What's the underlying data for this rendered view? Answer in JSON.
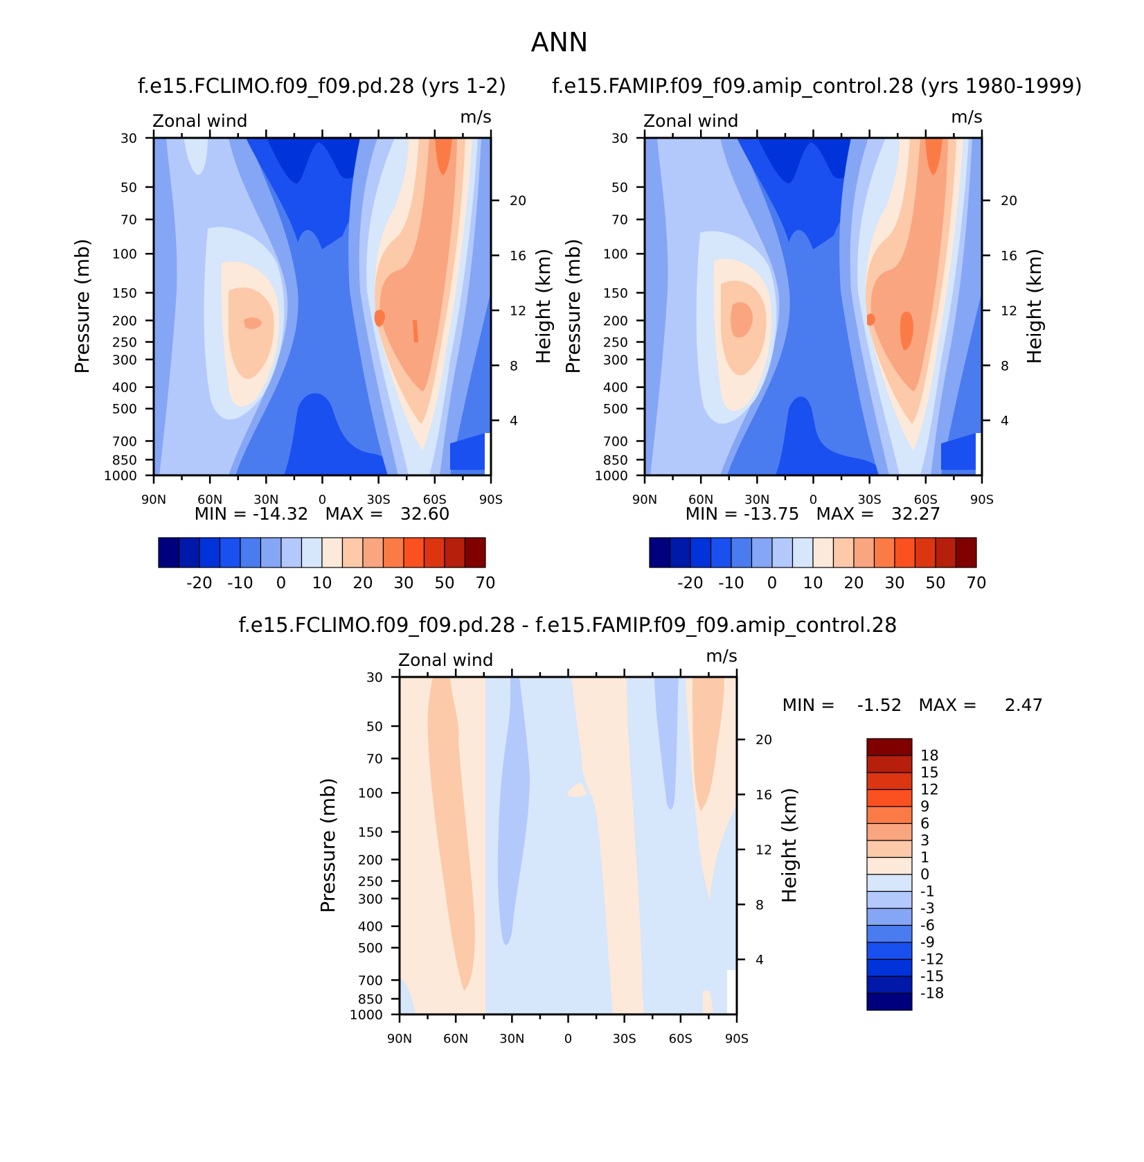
{
  "page_title": "ANN",
  "colors": {
    "blue_8": "#00007f",
    "blue_7": "#0019a8",
    "blue_6": "#0033d9",
    "blue_5": "#1a4ff0",
    "blue_4": "#4a7cf0",
    "blue_3": "#85a6f5",
    "blue_2": "#b3c9fb",
    "blue_1": "#d6e6fb",
    "red_1": "#fde9d9",
    "red_2": "#fcc9a9",
    "red_3": "#f9a57f",
    "red_4": "#fb7b47",
    "red_5": "#fb5020",
    "red_6": "#dc3512",
    "red_7": "#b51f0b",
    "red_8": "#800000"
  },
  "chart_data": [
    {
      "type": "heatmap",
      "title": "f.e15.FCLIMO.f09_f09.pd.28 (yrs 1-2)",
      "left_label": "Zonal wind",
      "right_label": "m/s",
      "xlabel": "",
      "ylabel": "Pressure (mb)",
      "y2label": "Height (km)",
      "x_ticks": [
        "90N",
        "60N",
        "30N",
        "0",
        "30S",
        "60S",
        "90S"
      ],
      "y_ticks": [
        "30",
        "50",
        "70",
        "100",
        "150",
        "200",
        "250",
        "300",
        "400",
        "500",
        "700",
        "850",
        "1000"
      ],
      "y2_ticks": [
        "20",
        "16",
        "12",
        "8",
        "4"
      ],
      "ylim": [
        1000,
        30
      ],
      "stats": "MIN = -14.32   MAX =   32.60",
      "min": -14.32,
      "max": 32.6,
      "colorbar_labels": [
        "-20",
        "-10",
        "0",
        "10",
        "20",
        "30",
        "50",
        "70"
      ],
      "jets": [
        {
          "lat": 35,
          "p": 200,
          "value": 22
        },
        {
          "lat": -40,
          "p": 200,
          "value": 32.6
        }
      ]
    },
    {
      "type": "heatmap",
      "title": "f.e15.FAMIP.f09_f09.amip_control.28 (yrs 1980-1999)",
      "left_label": "Zonal wind",
      "right_label": "m/s",
      "xlabel": "",
      "ylabel": "Pressure (mb)",
      "y2label": "Height (km)",
      "x_ticks": [
        "90N",
        "60N",
        "30N",
        "0",
        "30S",
        "60S",
        "90S"
      ],
      "y_ticks": [
        "30",
        "50",
        "70",
        "100",
        "150",
        "200",
        "250",
        "300",
        "400",
        "500",
        "700",
        "850",
        "1000"
      ],
      "y2_ticks": [
        "20",
        "16",
        "12",
        "8",
        "4"
      ],
      "ylim": [
        1000,
        30
      ],
      "stats": "MIN = -13.75   MAX =   32.27",
      "min": -13.75,
      "max": 32.27,
      "colorbar_labels": [
        "-20",
        "-10",
        "0",
        "10",
        "20",
        "30",
        "50",
        "70"
      ],
      "jets": [
        {
          "lat": 35,
          "p": 200,
          "value": 22
        },
        {
          "lat": -40,
          "p": 200,
          "value": 32.27
        }
      ]
    },
    {
      "type": "heatmap",
      "title": "f.e15.FCLIMO.f09_f09.pd.28 - f.e15.FAMIP.f09_f09.amip_control.28",
      "left_label": "Zonal wind",
      "right_label": "m/s",
      "xlabel": "",
      "ylabel": "Pressure (mb)",
      "y2label": "Height (km)",
      "x_ticks": [
        "90N",
        "60N",
        "30N",
        "0",
        "30S",
        "60S",
        "90S"
      ],
      "y_ticks": [
        "30",
        "50",
        "70",
        "100",
        "150",
        "200",
        "250",
        "300",
        "400",
        "500",
        "700",
        "850",
        "1000"
      ],
      "y2_ticks": [
        "20",
        "16",
        "12",
        "8",
        "4"
      ],
      "ylim": [
        1000,
        30
      ],
      "stats": "MIN =    -1.52   MAX =     2.47",
      "min": -1.52,
      "max": 2.47,
      "colorbar_labels": [
        "18",
        "15",
        "12",
        "9",
        "6",
        "3",
        "1",
        "0",
        "-1",
        "-3",
        "-6",
        "-9",
        "-12",
        "-15",
        "-18"
      ]
    }
  ]
}
